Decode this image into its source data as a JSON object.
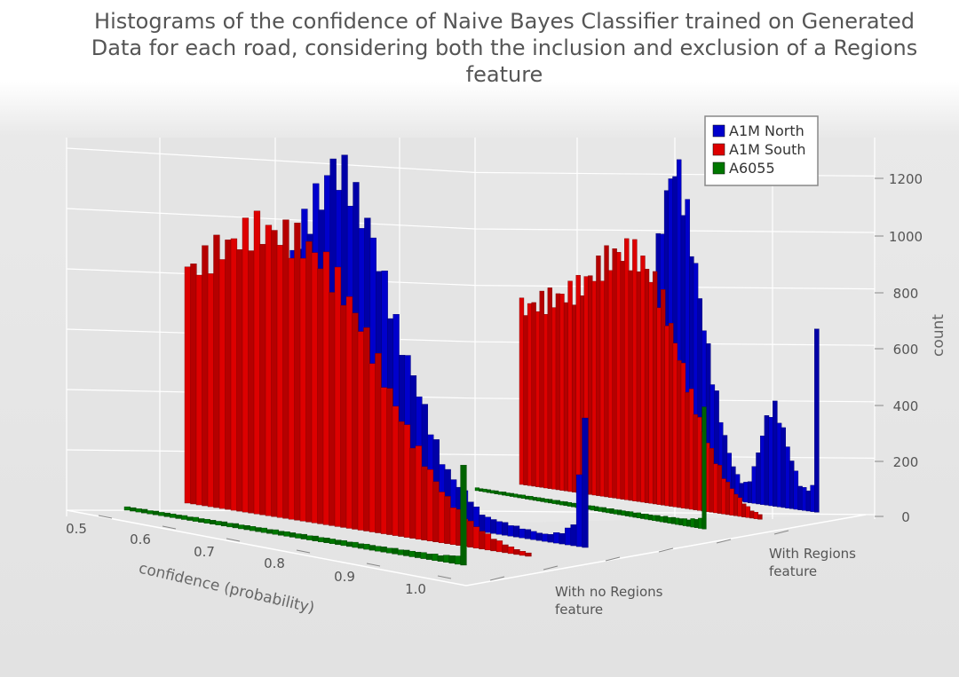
{
  "chart_data": {
    "type": "bar",
    "title": "Histograms of the confidence of Naive Bayes Classifier trained on Generated Data for each road, considering both the inclusion and exclusion of a Regions feature",
    "title_lines": [
      "Histograms of the confidence of Naive Bayes Classifier trained on Generated",
      "Data for each road, considering both the inclusion and exclusion of a Regions",
      "feature"
    ],
    "xlabel": "confidence (probability)",
    "zlabel": "count",
    "x_ticks": [
      "0.5",
      "0.6",
      "0.7",
      "0.8",
      "0.9",
      "1.0"
    ],
    "z_ticks": [
      "0",
      "200",
      "400",
      "600",
      "800",
      "1000",
      "1200"
    ],
    "xlim": [
      0.5,
      1.0
    ],
    "zlim": [
      0,
      1300
    ],
    "legend_position": "top-right",
    "y_categories": [
      {
        "id": "noregions",
        "lines": [
          "With no Regions",
          "feature"
        ]
      },
      {
        "id": "regions",
        "lines": [
          "With Regions",
          "feature"
        ]
      }
    ],
    "bin_start": 0.6,
    "bin_end": 1.0,
    "series": [
      {
        "name": "A1M North",
        "road": "north",
        "color": "#0000cc",
        "groups": [
          {
            "category": "noregions",
            "profile": [
              [
                0.6,
                80
              ],
              [
                0.61,
                80
              ],
              [
                0.625,
                200
              ],
              [
                0.64,
                700
              ],
              [
                0.65,
                820
              ],
              [
                0.66,
                920
              ],
              [
                0.67,
                990
              ],
              [
                0.68,
                1060
              ],
              [
                0.69,
                1110
              ],
              [
                0.7,
                1180
              ],
              [
                0.705,
                1260
              ],
              [
                0.71,
                1180
              ],
              [
                0.72,
                1200
              ],
              [
                0.73,
                1100
              ],
              [
                0.74,
                1050
              ],
              [
                0.75,
                980
              ],
              [
                0.76,
                860
              ],
              [
                0.77,
                760
              ],
              [
                0.78,
                640
              ],
              [
                0.79,
                570
              ],
              [
                0.8,
                490
              ],
              [
                0.81,
                400
              ],
              [
                0.82,
                310
              ],
              [
                0.83,
                230
              ],
              [
                0.84,
                180
              ],
              [
                0.85,
                150
              ],
              [
                0.86,
                120
              ],
              [
                0.87,
                80
              ],
              [
                0.88,
                55
              ],
              [
                0.9,
                45
              ],
              [
                0.92,
                35
              ],
              [
                0.95,
                25
              ],
              [
                0.97,
                40
              ],
              [
                0.985,
                80
              ],
              [
                0.995,
                440
              ]
            ]
          },
          {
            "category": "regions",
            "profile": [
              [
                0.6,
                60
              ],
              [
                0.63,
                100
              ],
              [
                0.66,
                180
              ],
              [
                0.68,
                250
              ],
              [
                0.7,
                370
              ],
              [
                0.72,
                560
              ],
              [
                0.74,
                800
              ],
              [
                0.75,
                960
              ],
              [
                0.76,
                1080
              ],
              [
                0.77,
                1160
              ],
              [
                0.78,
                1100
              ],
              [
                0.79,
                980
              ],
              [
                0.8,
                850
              ],
              [
                0.81,
                700
              ],
              [
                0.82,
                560
              ],
              [
                0.83,
                430
              ],
              [
                0.84,
                320
              ],
              [
                0.85,
                220
              ],
              [
                0.86,
                140
              ],
              [
                0.87,
                90
              ],
              [
                0.88,
                60
              ],
              [
                0.89,
                80
              ],
              [
                0.9,
                150
              ],
              [
                0.91,
                250
              ],
              [
                0.92,
                330
              ],
              [
                0.93,
                350
              ],
              [
                0.94,
                300
              ],
              [
                0.95,
                220
              ],
              [
                0.96,
                150
              ],
              [
                0.97,
                90
              ],
              [
                0.98,
                70
              ],
              [
                0.99,
                90
              ],
              [
                0.995,
                660
              ]
            ]
          }
        ]
      },
      {
        "name": "A1M South",
        "road": "south",
        "color": "#dd0000",
        "groups": [
          {
            "category": "noregions",
            "profile": [
              [
                0.6,
                820
              ],
              [
                0.62,
                860
              ],
              [
                0.64,
                920
              ],
              [
                0.66,
                960
              ],
              [
                0.68,
                1010
              ],
              [
                0.7,
                1010
              ],
              [
                0.72,
                1000
              ],
              [
                0.74,
                980
              ],
              [
                0.76,
                930
              ],
              [
                0.78,
                850
              ],
              [
                0.8,
                750
              ],
              [
                0.82,
                620
              ],
              [
                0.84,
                480
              ],
              [
                0.86,
                360
              ],
              [
                0.88,
                260
              ],
              [
                0.9,
                170
              ],
              [
                0.92,
                110
              ],
              [
                0.94,
                70
              ],
              [
                0.96,
                40
              ],
              [
                0.98,
                20
              ],
              [
                1.0,
                10
              ]
            ]
          },
          {
            "category": "regions",
            "profile": [
              [
                0.6,
                620
              ],
              [
                0.62,
                640
              ],
              [
                0.64,
                660
              ],
              [
                0.66,
                680
              ],
              [
                0.68,
                700
              ],
              [
                0.7,
                730
              ],
              [
                0.72,
                780
              ],
              [
                0.74,
                830
              ],
              [
                0.76,
                870
              ],
              [
                0.78,
                880
              ],
              [
                0.8,
                860
              ],
              [
                0.82,
                800
              ],
              [
                0.84,
                700
              ],
              [
                0.86,
                560
              ],
              [
                0.88,
                420
              ],
              [
                0.9,
                300
              ],
              [
                0.92,
                200
              ],
              [
                0.94,
                120
              ],
              [
                0.96,
                70
              ],
              [
                0.98,
                30
              ],
              [
                1.0,
                15
              ]
            ]
          }
        ]
      },
      {
        "name": "A6055",
        "road": "a6055",
        "color": "#007700",
        "groups": [
          {
            "category": "noregions",
            "profile": [
              [
                0.6,
                12
              ],
              [
                0.7,
                14
              ],
              [
                0.8,
                16
              ],
              [
                0.9,
                18
              ],
              [
                0.97,
                22
              ],
              [
                0.99,
                30
              ],
              [
                0.995,
                340
              ]
            ]
          },
          {
            "category": "regions",
            "profile": [
              [
                0.6,
                10
              ],
              [
                0.7,
                12
              ],
              [
                0.8,
                15
              ],
              [
                0.9,
                18
              ],
              [
                0.97,
                25
              ],
              [
                0.99,
                35
              ],
              [
                0.995,
                440
              ]
            ]
          }
        ]
      }
    ]
  }
}
